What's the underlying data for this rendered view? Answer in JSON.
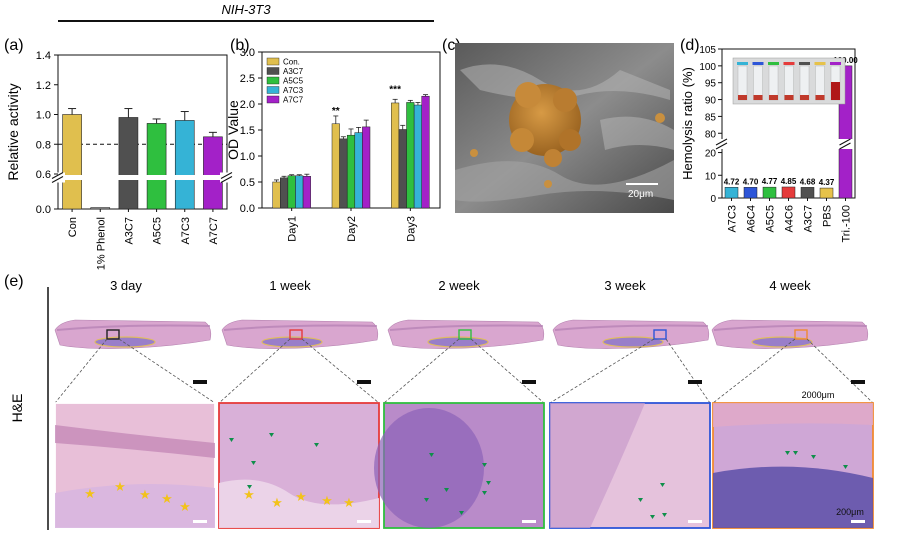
{
  "header": {
    "title": "NIH-3T3"
  },
  "colors": {
    "con": "#e0bf4e",
    "a3c7": "#505050",
    "a5c5": "#2fbf3f",
    "a7c3": "#35b3d6",
    "a7c7": "#a321c8",
    "phenol": "#9a9a9a",
    "red": "#e53b3b",
    "blue": "#2d55d8",
    "orange": "#f08a32",
    "pbs": "#e6c24a"
  },
  "chart_data": [
    {
      "id": "a",
      "type": "bar",
      "panel_label": "(a)",
      "title": "",
      "xlabel": "",
      "ylabel": "Relative activity",
      "categories": [
        "Con",
        "1% Phenol",
        "A3C7",
        "A5C5",
        "A7C3",
        "A7C7"
      ],
      "values": [
        1.0,
        0.01,
        0.98,
        0.94,
        0.96,
        0.85
      ],
      "errors": [
        0.04,
        0.0,
        0.06,
        0.03,
        0.06,
        0.03
      ],
      "yticks": [
        "0.0",
        "0.6",
        "0.8",
        "1.0",
        "1.2",
        "1.4"
      ],
      "ylim": [
        0.0,
        1.4
      ],
      "axis_break": [
        0.2,
        0.6
      ],
      "reference_line": 0.8
    },
    {
      "id": "b",
      "type": "bar",
      "panel_label": "(b)",
      "title": "",
      "xlabel": "",
      "ylabel": "OD Value",
      "categories": [
        "Day1",
        "Day2",
        "Day3"
      ],
      "series": [
        {
          "name": "Con.",
          "values": [
            0.5,
            1.62,
            2.02
          ],
          "errors": [
            0.04,
            0.15,
            0.07
          ]
        },
        {
          "name": "A3C7",
          "values": [
            0.58,
            1.33,
            1.51
          ],
          "errors": [
            0.03,
            0.04,
            0.08
          ]
        },
        {
          "name": "A5C5",
          "values": [
            0.62,
            1.4,
            2.03
          ],
          "errors": [
            0.02,
            0.12,
            0.04
          ]
        },
        {
          "name": "A7C3",
          "values": [
            0.62,
            1.45,
            1.98
          ],
          "errors": [
            0.02,
            0.1,
            0.05
          ]
        },
        {
          "name": "A7C7",
          "values": [
            0.61,
            1.56,
            2.15
          ],
          "errors": [
            0.04,
            0.13,
            0.03
          ]
        }
      ],
      "annotations": [
        {
          "category": "Day2",
          "text": "**"
        },
        {
          "category": "Day3",
          "text": "***"
        }
      ],
      "yticks": [
        "0.0",
        "0.5",
        "1.0",
        "1.5",
        "2.0",
        "2.5",
        "3.0"
      ],
      "ylim": [
        0.0,
        3.0
      ],
      "legend": "top-left"
    },
    {
      "id": "d",
      "type": "bar",
      "panel_label": "(d)",
      "title": "",
      "xlabel": "",
      "ylabel": "Hemolysis ratio (%)",
      "categories": [
        "A7C3",
        "A6C4",
        "A5C5",
        "A4C6",
        "A3C7",
        "PBS",
        "Tri.-100"
      ],
      "values": [
        4.72,
        4.7,
        4.77,
        4.85,
        4.68,
        4.37,
        100.0
      ],
      "value_labels": [
        "4.72",
        "4.70",
        "4.77",
        "4.85",
        "4.68",
        "4.37",
        "100.00"
      ],
      "yticks": [
        "0",
        "10",
        "20",
        "80",
        "85",
        "90",
        "95",
        "100",
        "105"
      ],
      "ylim": [
        0,
        105
      ],
      "axis_break": [
        22,
        78
      ]
    }
  ],
  "sem": {
    "panel_label": "(c)",
    "scale_label": "20μm"
  },
  "histology": {
    "panel_label": "(e)",
    "stain_label": "H&E",
    "timepoints": [
      "3 day",
      "1 week",
      "2 week",
      "3 week",
      "4 week"
    ],
    "scale_low": "2000μm",
    "scale_high": "200μm"
  }
}
